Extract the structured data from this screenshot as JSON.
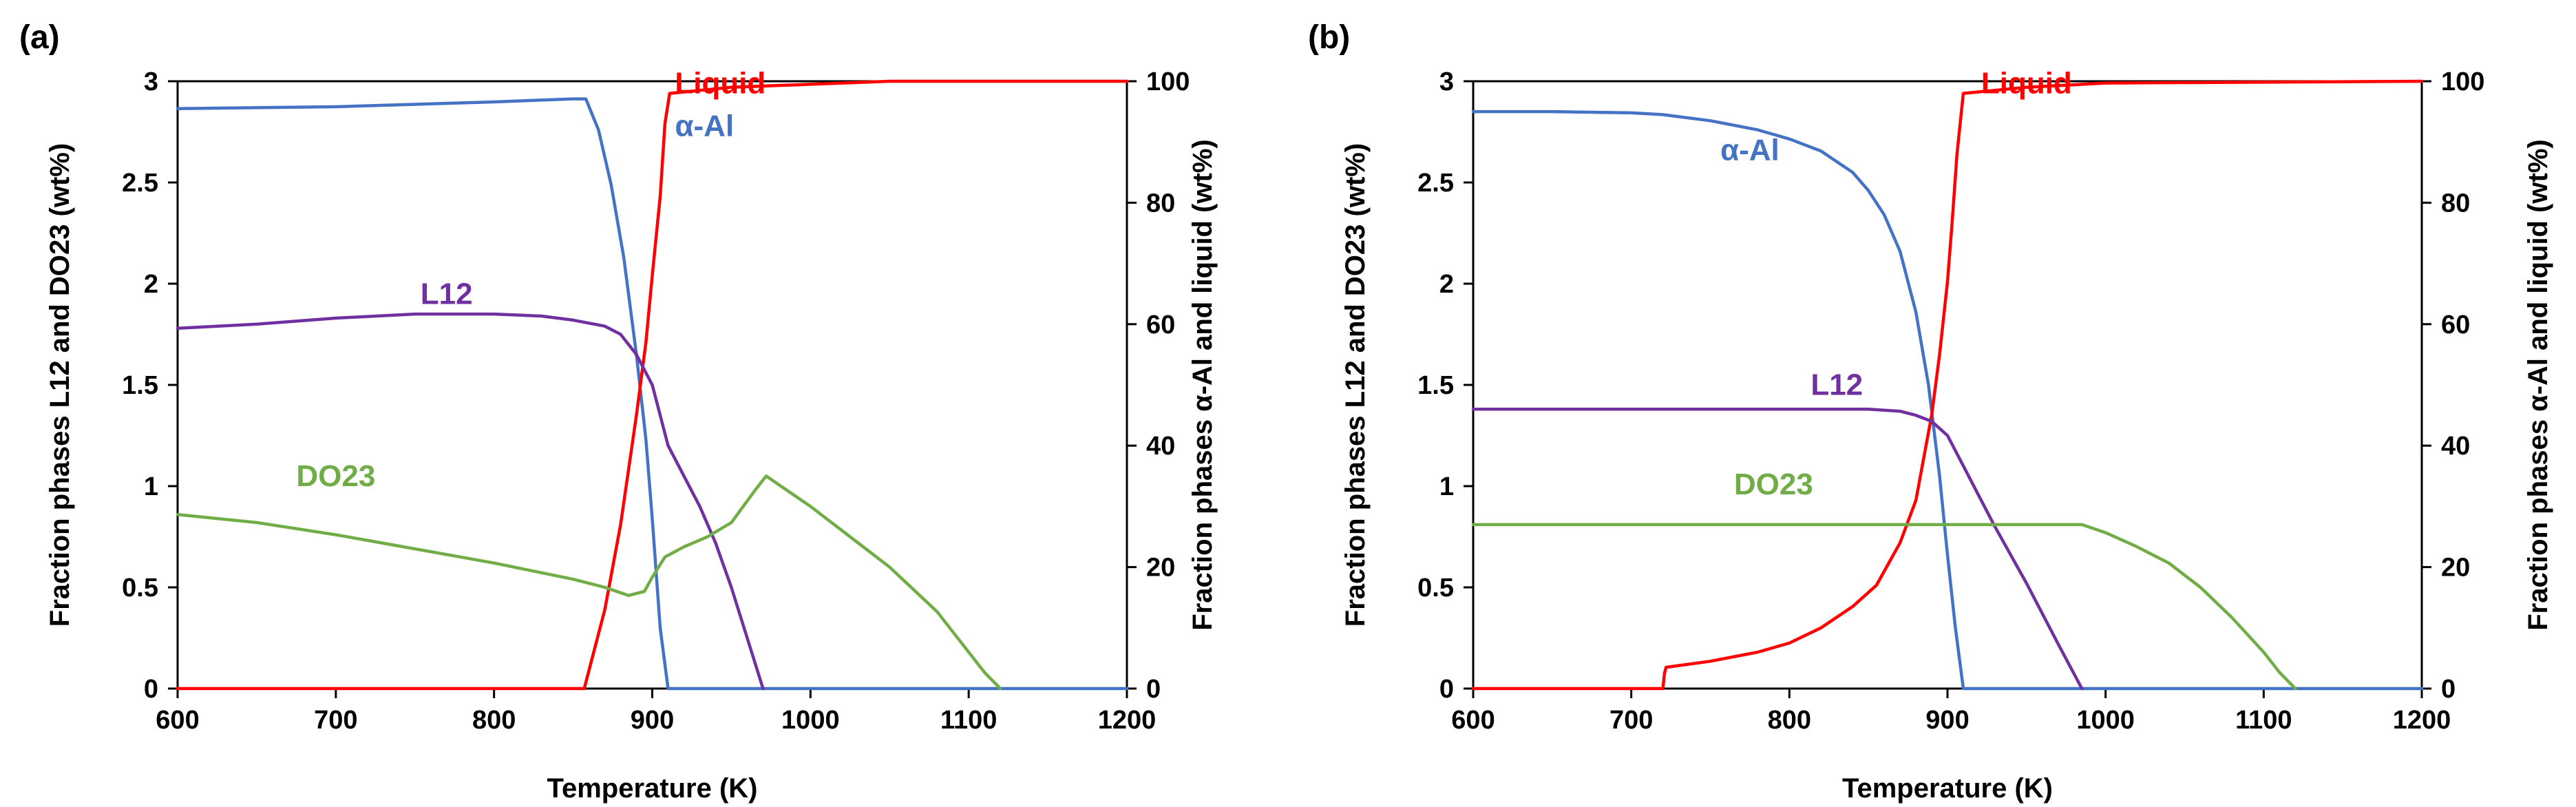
{
  "chart_data": [
    {
      "panel_label": "(a)",
      "type": "line",
      "xlabel": "Temperature (K)",
      "ylabel_left": "Fraction phases L12 and DO23 (wt%)",
      "ylabel_right": "Fraction phases α-Al and liquid (wt%)",
      "xlim": [
        600,
        1200
      ],
      "ylim_left": [
        0,
        3
      ],
      "ylim_right": [
        0,
        100
      ],
      "x_ticks": [
        "600",
        "700",
        "800",
        "900",
        "1000",
        "1100",
        "1200"
      ],
      "y_left_ticks": [
        "0",
        "0.5",
        "1",
        "1.5",
        "2",
        "2.5",
        "3"
      ],
      "y_right_ticks": [
        "0",
        "20",
        "40",
        "60",
        "80",
        "100"
      ],
      "series": [
        {
          "name": "α-Al",
          "axis": "right",
          "color": "#4472C4",
          "label_at": [
            933,
            91
          ],
          "x": [
            600,
            700,
            800,
            850,
            858,
            866,
            874,
            882,
            890,
            896,
            900,
            905,
            909,
            910,
            1200
          ],
          "y": [
            95.5,
            95.8,
            96.6,
            97.1,
            97.1,
            92,
            83,
            71,
            55,
            41,
            28,
            10,
            2,
            0,
            0
          ]
        },
        {
          "name": "Liquid",
          "axis": "right",
          "color": "#FF0000",
          "label_at": [
            943,
            98
          ],
          "x": [
            600,
            857,
            870,
            880,
            890,
            896,
            900,
            905,
            908,
            911,
            950,
            1000,
            1050,
            1200
          ],
          "y": [
            0,
            0,
            13,
            27,
            45,
            57,
            68,
            81,
            93,
            98,
            99,
            99.5,
            100,
            100
          ]
        },
        {
          "name": "L12",
          "axis": "left",
          "color": "#7030A0",
          "label_at": [
            770,
            1.9
          ],
          "x": [
            600,
            650,
            700,
            750,
            800,
            830,
            850,
            870,
            880,
            890,
            900,
            910,
            920,
            930,
            940,
            950,
            960,
            970
          ],
          "y": [
            1.78,
            1.8,
            1.83,
            1.85,
            1.85,
            1.84,
            1.82,
            1.79,
            1.75,
            1.65,
            1.5,
            1.2,
            1.05,
            0.9,
            0.72,
            0.5,
            0.25,
            0
          ]
        },
        {
          "name": "DO23",
          "axis": "left",
          "color": "#70AD47",
          "label_at": [
            700,
            1.0
          ],
          "x": [
            600,
            650,
            700,
            750,
            800,
            850,
            870,
            885,
            895,
            900,
            908,
            920,
            935,
            950,
            965,
            972,
            985,
            1000,
            1020,
            1050,
            1080,
            1100,
            1110,
            1120
          ],
          "y": [
            0.86,
            0.82,
            0.76,
            0.69,
            0.62,
            0.54,
            0.5,
            0.46,
            0.48,
            0.55,
            0.65,
            0.7,
            0.75,
            0.82,
            0.98,
            1.05,
            0.98,
            0.9,
            0.78,
            0.6,
            0.38,
            0.18,
            0.08,
            0
          ]
        }
      ]
    },
    {
      "panel_label": "(b)",
      "type": "line",
      "xlabel": "Temperature (K)",
      "ylabel_left": "Fraction phases L12 and DO23 (wt%)",
      "ylabel_right": "Fraction phases α-Al and liquid (wt%)",
      "xlim": [
        600,
        1200
      ],
      "ylim_left": [
        0,
        3
      ],
      "ylim_right": [
        0,
        100
      ],
      "x_ticks": [
        "600",
        "700",
        "800",
        "900",
        "1000",
        "1100",
        "1200"
      ],
      "y_left_ticks": [
        "0",
        "0.5",
        "1",
        "1.5",
        "2",
        "2.5",
        "3"
      ],
      "y_right_ticks": [
        "0",
        "20",
        "40",
        "60",
        "80",
        "100"
      ],
      "series": [
        {
          "name": "α-Al",
          "axis": "right",
          "color": "#4472C4",
          "label_at": [
            775,
            87
          ],
          "x": [
            600,
            650,
            700,
            720,
            750,
            780,
            800,
            820,
            840,
            850,
            860,
            870,
            880,
            888,
            895,
            900,
            905,
            910,
            1200
          ],
          "y": [
            95,
            95,
            94.8,
            94.5,
            93.5,
            92,
            90.5,
            88.5,
            85,
            82,
            78,
            72,
            62,
            50,
            35,
            22,
            10,
            0,
            0
          ]
        },
        {
          "name": "Liquid",
          "axis": "right",
          "color": "#FF0000",
          "label_at": [
            950,
            98
          ],
          "x": [
            600,
            720,
            721,
            722,
            750,
            780,
            800,
            820,
            840,
            855,
            870,
            880,
            890,
            895,
            900,
            903,
            906,
            910,
            950,
            1000,
            1200
          ],
          "y": [
            0,
            0,
            2.5,
            3.5,
            4.5,
            6,
            7.5,
            10,
            13.5,
            17,
            24,
            31,
            45,
            55,
            67,
            77,
            88,
            98,
            99,
            99.7,
            100
          ]
        },
        {
          "name": "L12",
          "axis": "left",
          "color": "#7030A0",
          "label_at": [
            830,
            1.45
          ],
          "x": [
            600,
            700,
            800,
            850,
            870,
            880,
            890,
            900,
            910,
            920,
            930,
            950,
            970,
            985
          ],
          "y": [
            1.38,
            1.38,
            1.38,
            1.38,
            1.37,
            1.35,
            1.32,
            1.25,
            1.1,
            0.95,
            0.8,
            0.52,
            0.22,
            0
          ]
        },
        {
          "name": "DO23",
          "axis": "left",
          "color": "#70AD47",
          "label_at": [
            790,
            0.96
          ],
          "x": [
            600,
            700,
            800,
            900,
            980,
            985,
            1000,
            1020,
            1040,
            1060,
            1080,
            1100,
            1110,
            1120
          ],
          "y": [
            0.81,
            0.81,
            0.81,
            0.81,
            0.81,
            0.81,
            0.77,
            0.7,
            0.62,
            0.5,
            0.35,
            0.18,
            0.08,
            0
          ]
        }
      ]
    }
  ]
}
